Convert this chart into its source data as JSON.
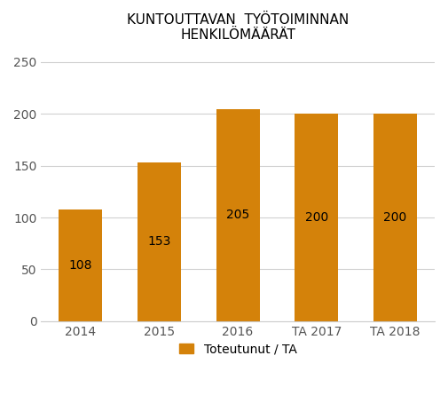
{
  "categories": [
    "2014",
    "2015",
    "2016",
    "TA 2017",
    "TA 2018"
  ],
  "values": [
    108,
    153,
    205,
    200,
    200
  ],
  "bar_color": "#D4820A",
  "title_line1": "KUNTOUTTAVAN  TYÖTOIMINNAN",
  "title_line2": "HENKILÖMÄÄRÄT",
  "ylabel": "",
  "xlabel": "",
  "ylim": [
    0,
    260
  ],
  "yticks": [
    0,
    50,
    100,
    150,
    200,
    250
  ],
  "legend_label": "Toteutunut / TA",
  "label_fontsize": 10,
  "title_fontsize": 11,
  "tick_fontsize": 10,
  "legend_fontsize": 10,
  "background_color": "#ffffff"
}
